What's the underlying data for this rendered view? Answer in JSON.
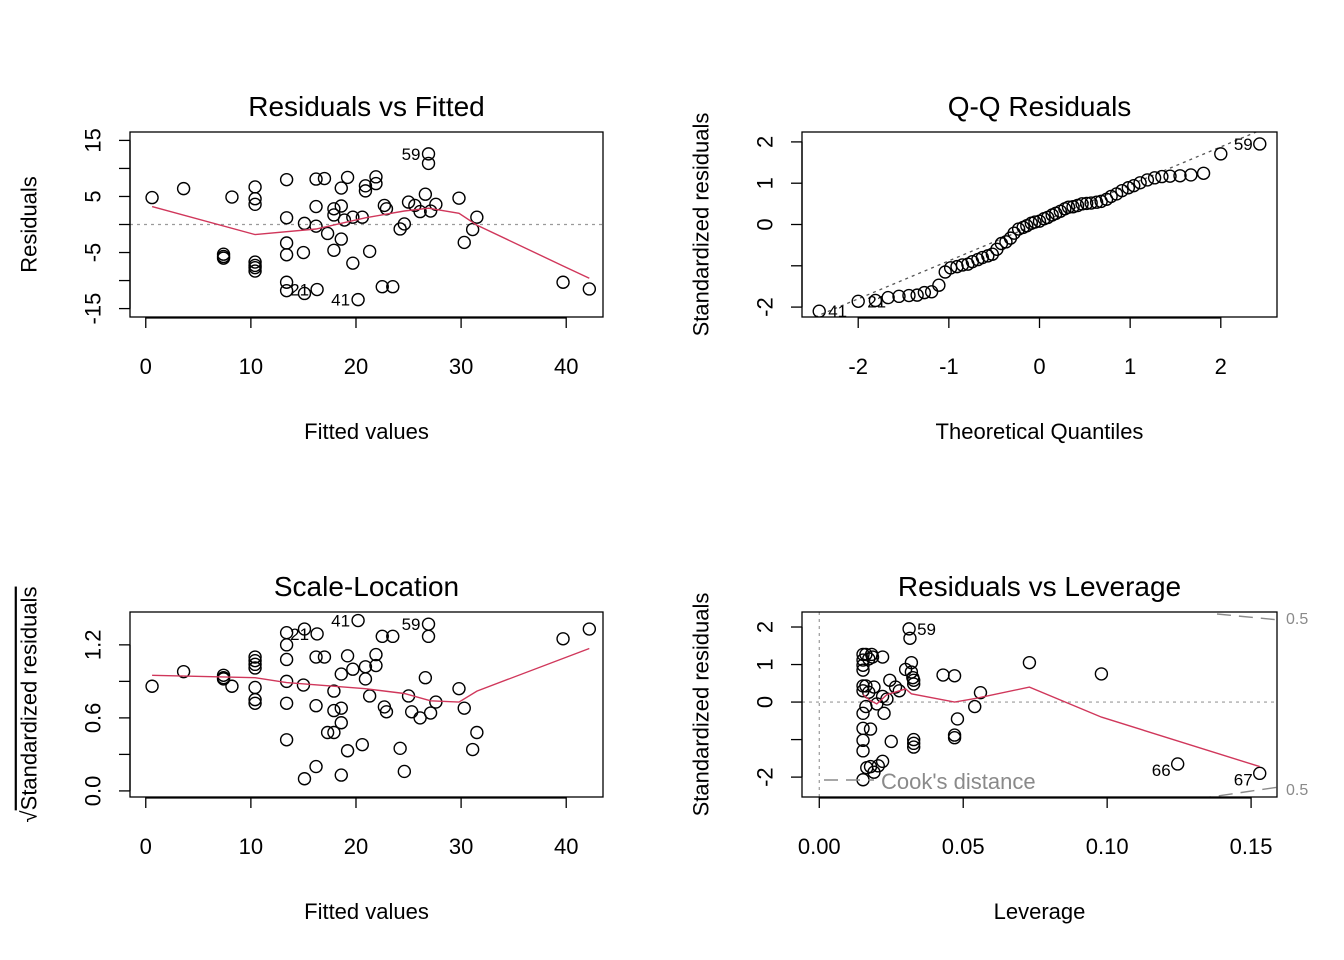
{
  "chart_data": [
    {
      "type": "scatter",
      "title": "Residuals vs Fitted",
      "xlabel": "Fitted values",
      "ylabel": "Residuals",
      "xlim": [
        -1.5,
        43.5
      ],
      "ylim": [
        -16.5,
        16.5
      ],
      "xticks": [
        0,
        10,
        20,
        30,
        40
      ],
      "xtick_labels": [
        "0",
        "10",
        "20",
        "30",
        "40"
      ],
      "yticks": [
        -15,
        -10,
        -5,
        0,
        5,
        10,
        15
      ],
      "ytick_labels": [
        "-15",
        "",
        "-5",
        "",
        "5",
        "",
        "15"
      ],
      "reference_y": 0,
      "points": [
        [
          0.6,
          4.8
        ],
        [
          3.6,
          6.4
        ],
        [
          8.2,
          4.9
        ],
        [
          7.4,
          -5.3
        ],
        [
          7.4,
          -6.0
        ],
        [
          7.4,
          -5.7
        ],
        [
          10.4,
          4.6
        ],
        [
          10.4,
          6.7
        ],
        [
          10.4,
          3.6
        ],
        [
          10.4,
          -6.7
        ],
        [
          10.4,
          -7.3
        ],
        [
          10.4,
          -7.7
        ],
        [
          10.4,
          -8.3
        ],
        [
          13.4,
          8.0
        ],
        [
          13.4,
          1.2
        ],
        [
          13.4,
          -3.3
        ],
        [
          13.4,
          -5.4
        ],
        [
          13.4,
          -10.3
        ],
        [
          13.4,
          -11.8
        ],
        [
          15.1,
          0.2
        ],
        [
          15.0,
          -5.0
        ],
        [
          15.1,
          -12.3
        ],
        [
          16.2,
          8.1
        ],
        [
          16.2,
          3.2
        ],
        [
          16.2,
          -0.3
        ],
        [
          16.3,
          -11.6
        ],
        [
          17.0,
          8.2
        ],
        [
          17.3,
          -1.6
        ],
        [
          17.9,
          1.7
        ],
        [
          17.9,
          2.8
        ],
        [
          17.9,
          -4.6
        ],
        [
          18.6,
          6.5
        ],
        [
          18.6,
          3.3
        ],
        [
          18.6,
          -2.6
        ],
        [
          18.9,
          0.8
        ],
        [
          19.2,
          8.4
        ],
        [
          19.7,
          -6.9
        ],
        [
          19.7,
          1.3
        ],
        [
          20.6,
          1.3
        ],
        [
          20.9,
          6.9
        ],
        [
          20.9,
          6.0
        ],
        [
          21.3,
          -4.8
        ],
        [
          21.9,
          8.5
        ],
        [
          21.9,
          7.3
        ],
        [
          22.5,
          -11.1
        ],
        [
          22.7,
          3.4
        ],
        [
          22.9,
          2.8
        ],
        [
          23.5,
          -11.1
        ],
        [
          24.2,
          -0.8
        ],
        [
          24.6,
          0.1
        ],
        [
          25.0,
          4.0
        ],
        [
          25.6,
          3.4
        ],
        [
          26.1,
          2.3
        ],
        [
          26.6,
          5.4
        ],
        [
          26.9,
          10.9
        ],
        [
          26.9,
          12.6
        ],
        [
          27.1,
          2.4
        ],
        [
          27.6,
          3.6
        ],
        [
          29.8,
          4.7
        ],
        [
          30.3,
          -3.2
        ],
        [
          31.1,
          -0.9
        ],
        [
          31.5,
          1.3
        ],
        [
          39.7,
          -10.3
        ],
        [
          42.2,
          -11.5
        ],
        [
          20.2,
          -13.4
        ]
      ],
      "labeled_points": [
        {
          "label": "59",
          "x": 26.9,
          "y": 12.6
        },
        {
          "label": "21",
          "x": 16.3,
          "y": -11.6
        },
        {
          "label": "41",
          "x": 20.2,
          "y": -13.4
        }
      ],
      "smooth_line": [
        [
          0.6,
          3.2
        ],
        [
          10.4,
          -1.8
        ],
        [
          16.2,
          -0.8
        ],
        [
          20.9,
          1.2
        ],
        [
          24.6,
          2.4
        ],
        [
          26.9,
          2.9
        ],
        [
          29.8,
          2.0
        ],
        [
          31.5,
          -0.1
        ],
        [
          39.7,
          -7.4
        ],
        [
          42.2,
          -9.6
        ]
      ]
    },
    {
      "type": "scatter",
      "title": "Q-Q Residuals",
      "xlabel": "Theoretical Quantiles",
      "ylabel": "Standardized residuals",
      "xlim": [
        -2.62,
        2.62
      ],
      "ylim": [
        -2.24,
        2.24
      ],
      "xticks": [
        -2,
        -1,
        0,
        1,
        2
      ],
      "xtick_labels": [
        "-2",
        "-1",
        "0",
        "1",
        "2"
      ],
      "yticks": [
        -2,
        -1,
        0,
        1,
        2
      ],
      "ytick_labels": [
        "-2",
        "",
        "0",
        "1",
        "2"
      ],
      "reference_line": {
        "intercept": 0.04,
        "slope": 0.92
      },
      "points": [
        [
          -2.43,
          -2.1
        ],
        [
          -2.0,
          -1.86
        ],
        [
          -1.81,
          -1.84
        ],
        [
          -1.67,
          -1.77
        ],
        [
          -1.55,
          -1.74
        ],
        [
          -1.44,
          -1.72
        ],
        [
          -1.35,
          -1.71
        ],
        [
          -1.27,
          -1.65
        ],
        [
          -1.19,
          -1.63
        ],
        [
          -1.11,
          -1.47
        ],
        [
          -1.04,
          -1.15
        ],
        [
          -0.98,
          -1.05
        ],
        [
          -0.91,
          -1.02
        ],
        [
          -0.85,
          -0.98
        ],
        [
          -0.79,
          -0.96
        ],
        [
          -0.74,
          -0.9
        ],
        [
          -0.68,
          -0.85
        ],
        [
          -0.63,
          -0.8
        ],
        [
          -0.57,
          -0.76
        ],
        [
          -0.52,
          -0.72
        ],
        [
          -0.47,
          -0.6
        ],
        [
          -0.42,
          -0.46
        ],
        [
          -0.37,
          -0.42
        ],
        [
          -0.32,
          -0.33
        ],
        [
          -0.28,
          -0.21
        ],
        [
          -0.23,
          -0.11
        ],
        [
          -0.18,
          -0.07
        ],
        [
          -0.14,
          -0.03
        ],
        [
          -0.09,
          0.03
        ],
        [
          -0.05,
          0.06
        ],
        [
          0.0,
          0.08
        ],
        [
          0.05,
          0.14
        ],
        [
          0.09,
          0.17
        ],
        [
          0.14,
          0.23
        ],
        [
          0.18,
          0.27
        ],
        [
          0.23,
          0.32
        ],
        [
          0.28,
          0.38
        ],
        [
          0.32,
          0.42
        ],
        [
          0.37,
          0.43
        ],
        [
          0.42,
          0.46
        ],
        [
          0.47,
          0.5
        ],
        [
          0.52,
          0.51
        ],
        [
          0.57,
          0.52
        ],
        [
          0.63,
          0.54
        ],
        [
          0.68,
          0.56
        ],
        [
          0.74,
          0.61
        ],
        [
          0.79,
          0.68
        ],
        [
          0.85,
          0.74
        ],
        [
          0.91,
          0.82
        ],
        [
          0.98,
          0.89
        ],
        [
          1.04,
          0.94
        ],
        [
          1.11,
          1.01
        ],
        [
          1.19,
          1.08
        ],
        [
          1.27,
          1.13
        ],
        [
          1.35,
          1.16
        ],
        [
          1.44,
          1.17
        ],
        [
          1.55,
          1.18
        ],
        [
          1.67,
          1.2
        ],
        [
          1.81,
          1.24
        ],
        [
          2.0,
          1.71
        ],
        [
          2.43,
          1.95
        ]
      ],
      "labeled_points": [
        {
          "label": "41",
          "x": -2.43,
          "y": -2.1
        },
        {
          "label": "21",
          "x": -2.0,
          "y": -1.86
        },
        {
          "label": "59",
          "x": 2.43,
          "y": 1.95
        }
      ]
    },
    {
      "type": "scatter",
      "title": "Scale-Location",
      "xlabel": "Fitted values",
      "ylabel_radical": "√",
      "ylabel": "Standardized residuals",
      "xlim": [
        -1.5,
        43.5
      ],
      "ylim": [
        -0.05,
        1.47
      ],
      "xticks": [
        0,
        10,
        20,
        30,
        40
      ],
      "xtick_labels": [
        "0",
        "10",
        "20",
        "30",
        "40"
      ],
      "yticks": [
        0.0,
        0.3,
        0.6,
        0.9,
        1.2
      ],
      "ytick_labels": [
        "0.0",
        "",
        "0.6",
        "",
        "1.2"
      ],
      "points": [
        [
          0.6,
          0.86
        ],
        [
          3.6,
          0.98
        ],
        [
          8.2,
          0.86
        ],
        [
          7.4,
          0.95
        ],
        [
          7.4,
          0.93
        ],
        [
          7.4,
          0.92
        ],
        [
          10.4,
          0.85
        ],
        [
          10.4,
          0.75
        ],
        [
          10.4,
          0.72
        ],
        [
          10.4,
          1.01
        ],
        [
          10.4,
          1.04
        ],
        [
          10.4,
          1.07
        ],
        [
          10.4,
          1.1
        ],
        [
          13.4,
          1.3
        ],
        [
          13.4,
          1.2
        ],
        [
          13.4,
          1.08
        ],
        [
          13.4,
          0.9
        ],
        [
          13.4,
          0.72
        ],
        [
          13.4,
          0.42
        ],
        [
          15.0,
          0.87
        ],
        [
          15.1,
          1.33
        ],
        [
          15.1,
          0.1
        ],
        [
          16.2,
          1.1
        ],
        [
          16.2,
          0.7
        ],
        [
          16.2,
          0.2
        ],
        [
          16.3,
          1.29
        ],
        [
          17.0,
          1.1
        ],
        [
          17.3,
          0.48
        ],
        [
          17.9,
          0.82
        ],
        [
          17.9,
          0.66
        ],
        [
          17.9,
          0.48
        ],
        [
          18.6,
          0.96
        ],
        [
          18.6,
          0.68
        ],
        [
          18.6,
          0.56
        ],
        [
          18.6,
          0.13
        ],
        [
          19.2,
          1.11
        ],
        [
          19.2,
          0.33
        ],
        [
          19.7,
          1.0
        ],
        [
          20.2,
          1.4
        ],
        [
          20.6,
          0.38
        ],
        [
          20.9,
          1.02
        ],
        [
          20.9,
          0.92
        ],
        [
          21.3,
          0.78
        ],
        [
          21.9,
          1.12
        ],
        [
          21.9,
          1.03
        ],
        [
          22.5,
          1.27
        ],
        [
          22.7,
          0.69
        ],
        [
          22.9,
          0.65
        ],
        [
          23.5,
          1.27
        ],
        [
          24.2,
          0.35
        ],
        [
          24.6,
          0.16
        ],
        [
          25.0,
          0.78
        ],
        [
          25.3,
          0.65
        ],
        [
          26.1,
          0.6
        ],
        [
          26.6,
          0.93
        ],
        [
          26.9,
          1.27
        ],
        [
          26.9,
          1.37
        ],
        [
          27.1,
          0.64
        ],
        [
          27.6,
          0.73
        ],
        [
          29.8,
          0.84
        ],
        [
          30.3,
          0.68
        ],
        [
          31.1,
          0.34
        ],
        [
          31.5,
          0.48
        ],
        [
          39.7,
          1.25
        ],
        [
          42.2,
          1.33
        ]
      ],
      "labeled_points": [
        {
          "label": "21",
          "x": 16.3,
          "y": 1.29
        },
        {
          "label": "41",
          "x": 20.2,
          "y": 1.4
        },
        {
          "label": "59",
          "x": 26.9,
          "y": 1.37
        }
      ],
      "smooth_line": [
        [
          0.6,
          0.95
        ],
        [
          10.4,
          0.93
        ],
        [
          13.4,
          0.89
        ],
        [
          20.9,
          0.84
        ],
        [
          24.6,
          0.8
        ],
        [
          27.1,
          0.74
        ],
        [
          29.8,
          0.73
        ],
        [
          31.5,
          0.82
        ],
        [
          42.2,
          1.17
        ]
      ]
    },
    {
      "type": "scatter",
      "title": "Residuals vs Leverage",
      "xlabel": "Leverage",
      "ylabel": "Standardized residuals",
      "xlim": [
        -0.006,
        0.159
      ],
      "ylim": [
        -2.53,
        2.4
      ],
      "xticks": [
        0.0,
        0.05,
        0.1,
        0.15
      ],
      "xtick_labels": [
        "0.00",
        "0.05",
        "0.10",
        "0.15"
      ],
      "yticks": [
        -2,
        -1,
        0,
        1,
        2
      ],
      "ytick_labels": [
        "-2",
        "",
        "0",
        "1",
        "2"
      ],
      "reference_y": 0,
      "reference_x": 0,
      "legend": "Cook's distance",
      "cook_contour_label": "0.5",
      "points": [
        [
          0.0152,
          1.27
        ],
        [
          0.0152,
          1.12
        ],
        [
          0.0152,
          0.98
        ],
        [
          0.0152,
          0.85
        ],
        [
          0.0152,
          0.43
        ],
        [
          0.0152,
          0.3
        ],
        [
          0.0152,
          -0.3
        ],
        [
          0.0152,
          -0.7
        ],
        [
          0.0152,
          -1.02
        ],
        [
          0.0152,
          -1.3
        ],
        [
          0.0152,
          -2.07
        ],
        [
          0.0162,
          1.27
        ],
        [
          0.0162,
          0.43
        ],
        [
          0.0162,
          -0.12
        ],
        [
          0.0165,
          -1.75
        ],
        [
          0.0172,
          1.15
        ],
        [
          0.0172,
          0.26
        ],
        [
          0.0178,
          -0.72
        ],
        [
          0.0178,
          -1.72
        ],
        [
          0.0182,
          1.27
        ],
        [
          0.0185,
          1.2
        ],
        [
          0.019,
          -1.87
        ],
        [
          0.019,
          0.4
        ],
        [
          0.02,
          -0.05
        ],
        [
          0.0205,
          -1.7
        ],
        [
          0.022,
          1.2
        ],
        [
          0.022,
          0.15
        ],
        [
          0.022,
          -1.58
        ],
        [
          0.0225,
          -0.3
        ],
        [
          0.0235,
          0.08
        ],
        [
          0.0245,
          0.58
        ],
        [
          0.025,
          -1.05
        ],
        [
          0.0265,
          0.4
        ],
        [
          0.0278,
          0.3
        ],
        [
          0.03,
          0.87
        ],
        [
          0.0312,
          1.95
        ],
        [
          0.0315,
          1.7
        ],
        [
          0.032,
          0.8
        ],
        [
          0.032,
          1.05
        ],
        [
          0.0325,
          0.65
        ],
        [
          0.0328,
          0.58
        ],
        [
          0.0328,
          0.48
        ],
        [
          0.0328,
          -1.0
        ],
        [
          0.0328,
          -1.1
        ],
        [
          0.0328,
          -1.2
        ],
        [
          0.043,
          0.72
        ],
        [
          0.047,
          0.7
        ],
        [
          0.047,
          -0.88
        ],
        [
          0.047,
          -0.95
        ],
        [
          0.048,
          -0.45
        ],
        [
          0.054,
          -0.12
        ],
        [
          0.056,
          0.25
        ],
        [
          0.073,
          1.05
        ],
        [
          0.098,
          0.75
        ],
        [
          0.1245,
          -1.65
        ],
        [
          0.153,
          -1.9
        ]
      ],
      "labeled_points": [
        {
          "label": "59",
          "x": 0.0312,
          "y": 1.95
        },
        {
          "label": "66",
          "x": 0.1245,
          "y": -1.65
        },
        {
          "label": "67",
          "x": 0.153,
          "y": -1.9
        }
      ],
      "smooth_line": [
        [
          0.0152,
          0.2
        ],
        [
          0.0175,
          0.05
        ],
        [
          0.02,
          -0.05
        ],
        [
          0.0235,
          0.2
        ],
        [
          0.03,
          0.35
        ],
        [
          0.032,
          0.22
        ],
        [
          0.047,
          0.0
        ],
        [
          0.0545,
          0.1
        ],
        [
          0.073,
          0.4
        ],
        [
          0.098,
          -0.4
        ],
        [
          0.153,
          -1.72
        ]
      ]
    }
  ]
}
